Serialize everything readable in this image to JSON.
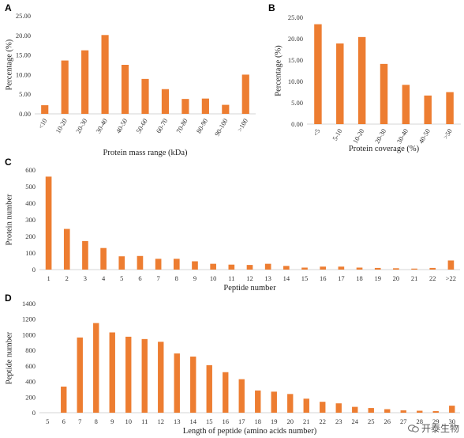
{
  "chart_data": [
    {
      "panel": "A",
      "type": "bar",
      "categories": [
        "<10",
        "10-20",
        "20-30",
        "30-40",
        "40-50",
        "50-60",
        "60-70",
        "70-80",
        "80-90",
        "90-100",
        ">100"
      ],
      "values": [
        2.2,
        13.6,
        16.2,
        20.1,
        12.5,
        8.9,
        6.3,
        3.8,
        3.9,
        2.3,
        10.0
      ],
      "xlabel": "Protein mass range (kDa)",
      "ylabel": "Percentage (%)",
      "ylim": [
        0,
        25
      ],
      "yticks": [
        "0.00",
        "5.00",
        "10.00",
        "15.00",
        "20.00",
        "25.00"
      ],
      "ytick_values": [
        0,
        5,
        10,
        15,
        20,
        25
      ],
      "grid": false,
      "color": "#ED7D31"
    },
    {
      "panel": "B",
      "type": "bar",
      "categories": [
        "<5",
        "5-10",
        "10-20",
        "20-30",
        "30-40",
        "40-50",
        ">50"
      ],
      "values": [
        23.4,
        18.9,
        20.4,
        14.1,
        9.2,
        6.7,
        7.5
      ],
      "xlabel": "Protein coverage (%)",
      "ylabel": "Percentage (%)",
      "ylim": [
        0,
        25
      ],
      "yticks": [
        "0.00",
        "5.00",
        "10.00",
        "15.00",
        "20.00",
        "25.00"
      ],
      "ytick_values": [
        0,
        5,
        10,
        15,
        20,
        25
      ],
      "grid": false,
      "color": "#ED7D31"
    },
    {
      "panel": "C",
      "type": "bar",
      "categories": [
        "1",
        "2",
        "3",
        "4",
        "5",
        "6",
        "7",
        "8",
        "9",
        "10",
        "11",
        "12",
        "13",
        "14",
        "15",
        "16",
        "17",
        "18",
        "19",
        "20",
        "21",
        "22",
        ">22"
      ],
      "values": [
        560,
        245,
        172,
        130,
        80,
        82,
        65,
        65,
        50,
        35,
        30,
        28,
        35,
        22,
        12,
        18,
        18,
        12,
        10,
        8,
        6,
        10,
        55
      ],
      "xlabel": "Peptide number",
      "ylabel": "Protein number",
      "ylim": [
        0,
        600
      ],
      "yticks": [
        "0",
        "100",
        "200",
        "300",
        "400",
        "500",
        "600"
      ],
      "ytick_values": [
        0,
        100,
        200,
        300,
        400,
        500,
        600
      ],
      "grid": false,
      "color": "#ED7D31"
    },
    {
      "panel": "D",
      "type": "bar",
      "categories": [
        "5",
        "6",
        "7",
        "8",
        "9",
        "10",
        "11",
        "12",
        "13",
        "14",
        "15",
        "16",
        "17",
        "18",
        "19",
        "20",
        "21",
        "22",
        "23",
        "24",
        "25",
        "26",
        "27",
        "28",
        "29",
        "30"
      ],
      "values": [
        0,
        335,
        965,
        1150,
        1030,
        975,
        945,
        910,
        760,
        720,
        610,
        520,
        430,
        285,
        270,
        240,
        180,
        140,
        120,
        75,
        60,
        45,
        30,
        25,
        20,
        90
      ],
      "xlabel": "Length of peptide (amino acids number)",
      "ylabel": "Peptide number",
      "ylim": [
        0,
        1400
      ],
      "yticks": [
        "0",
        "200",
        "400",
        "600",
        "800",
        "1000",
        "1200",
        "1400"
      ],
      "ytick_values": [
        0,
        200,
        400,
        600,
        800,
        1000,
        1200,
        1400
      ],
      "grid": false,
      "color": "#ED7D31"
    }
  ],
  "panel_labels": [
    "A",
    "B",
    "C",
    "D"
  ],
  "watermark": "开泰生物"
}
